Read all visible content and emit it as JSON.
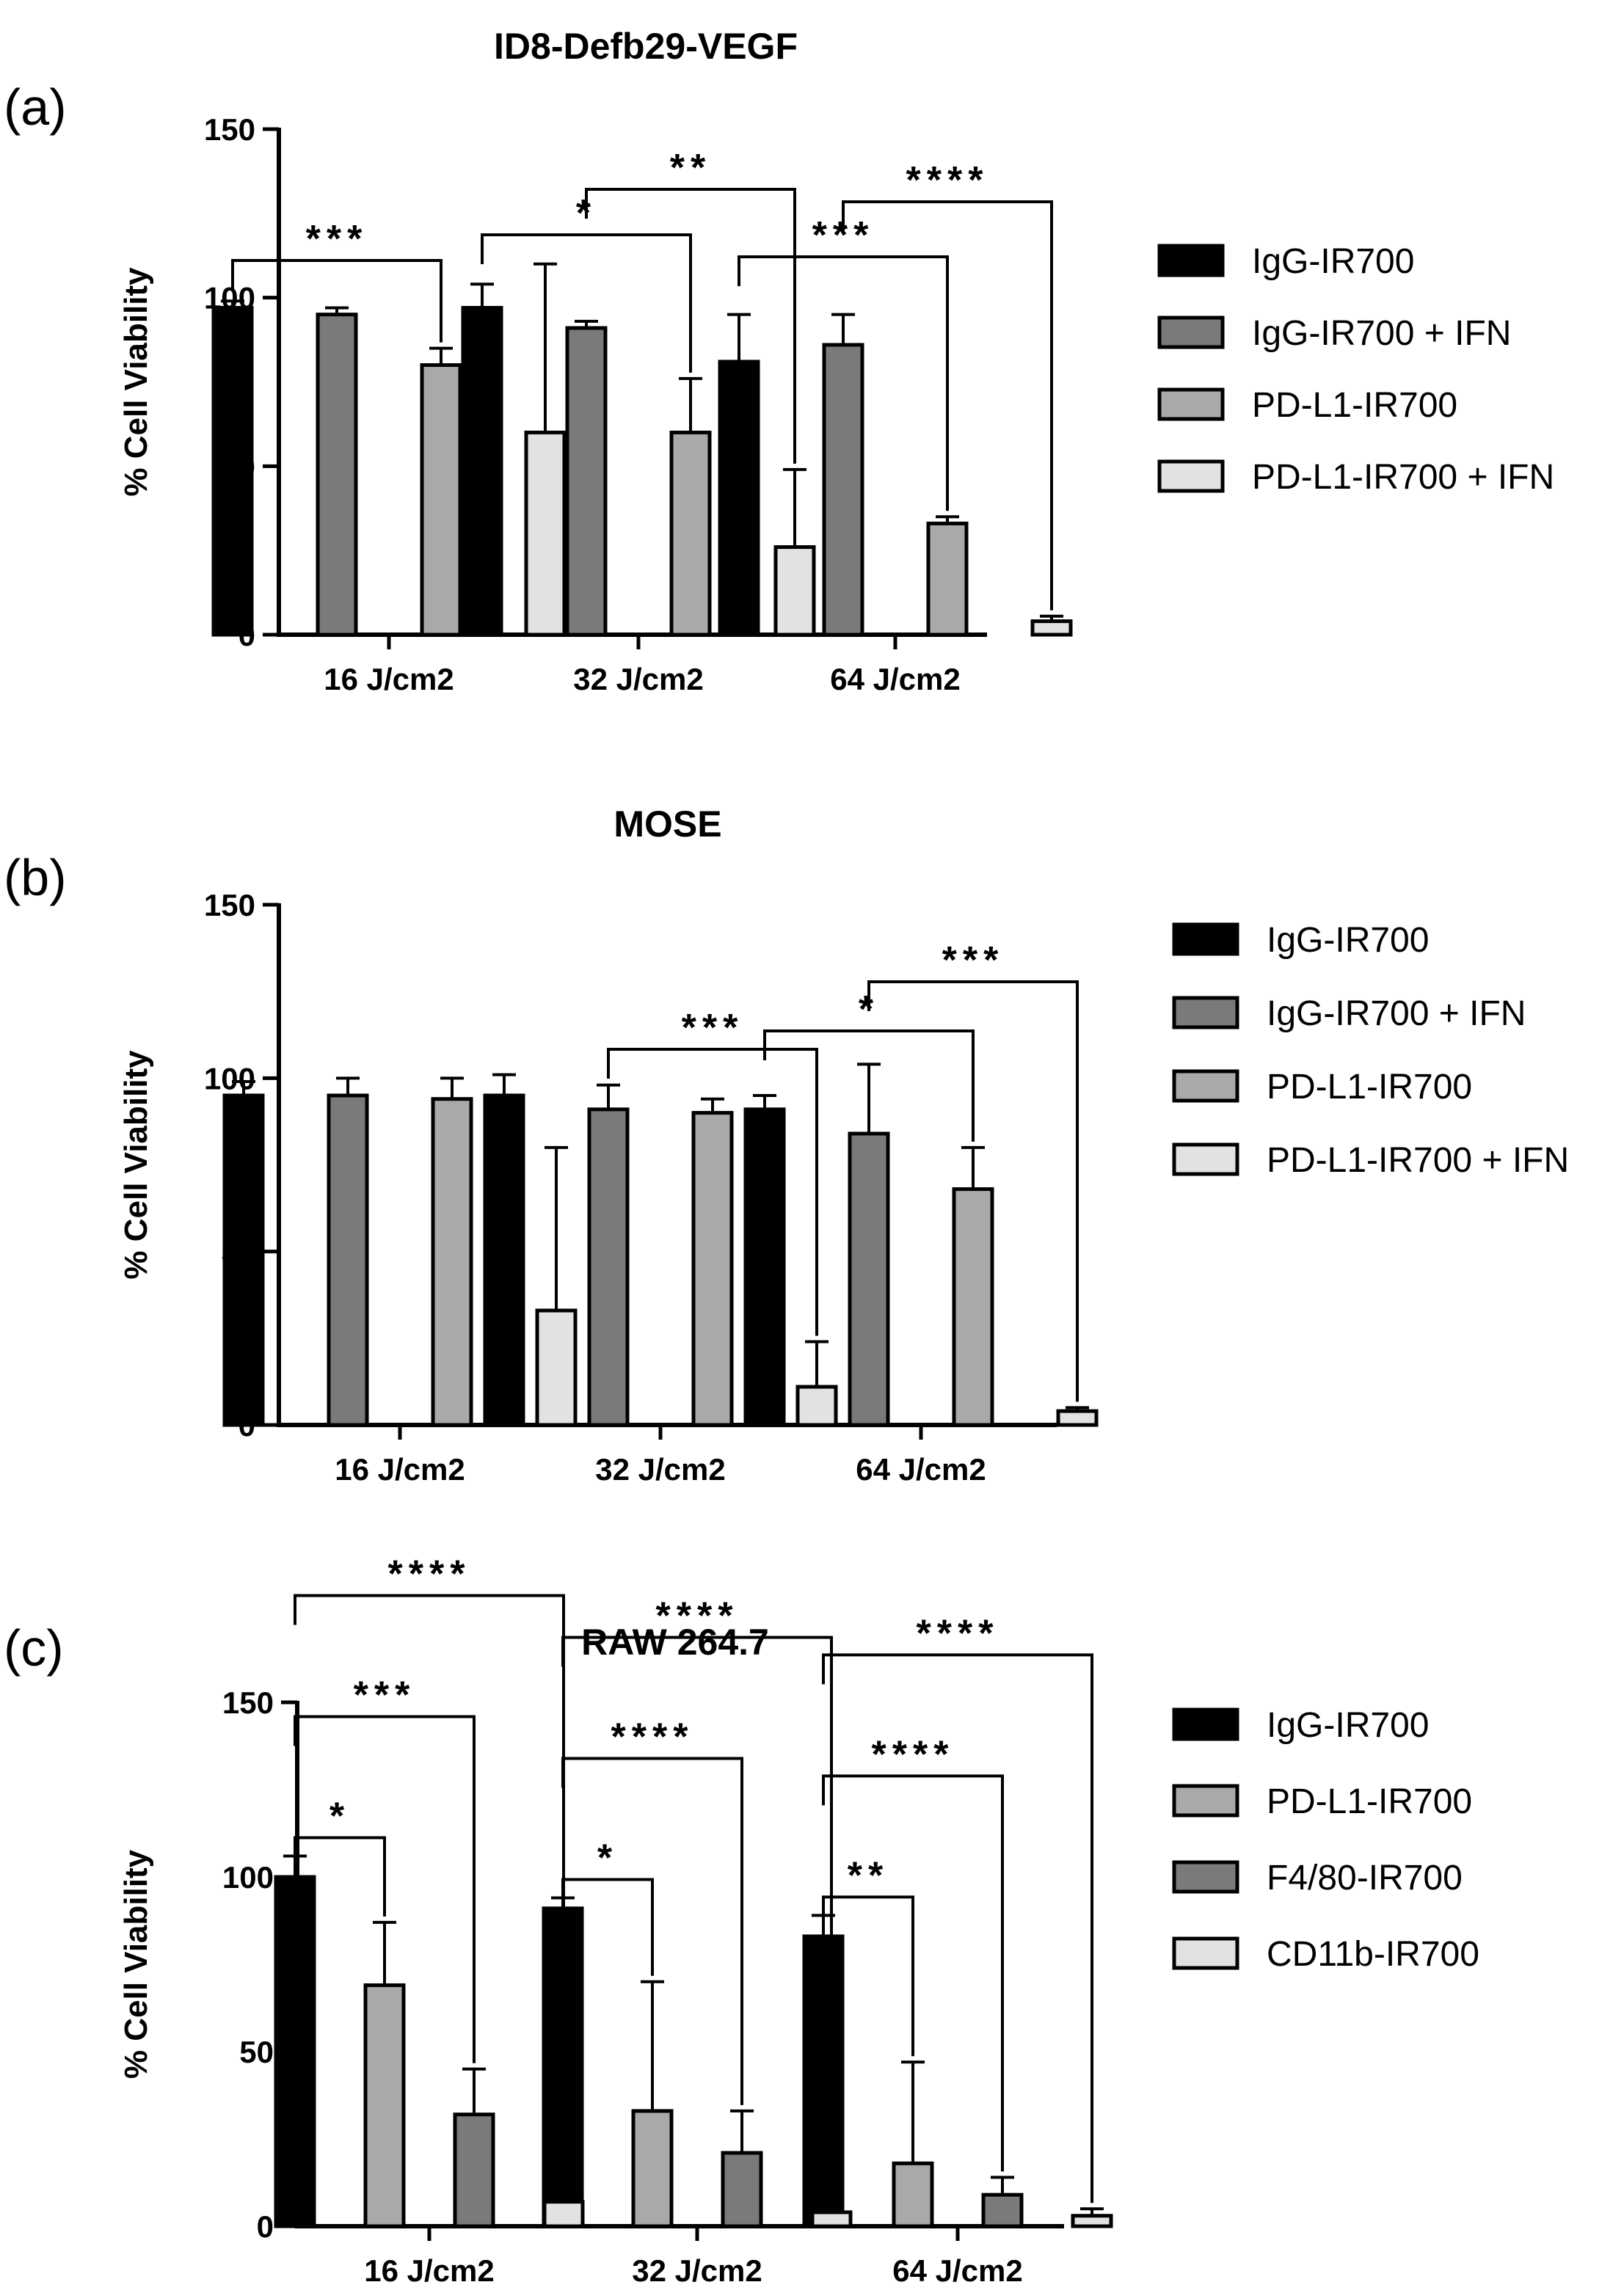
{
  "chart_data": [
    {
      "type": "bar",
      "panel_label": "(a)",
      "title": "ID8-Defb29-VEGF",
      "ylabel": "% Cell Viability",
      "xlabel": "",
      "ylim": [
        0,
        150
      ],
      "yticks": [
        0,
        50,
        100,
        150
      ],
      "categories": [
        "16 J/cm2",
        "32 J/cm2",
        "64 J/cm2"
      ],
      "legend_position": "right",
      "series": [
        {
          "name": "IgG-IR700",
          "color": "#000000",
          "values": [
            97,
            97,
            81
          ],
          "errors": [
            2,
            7,
            14
          ]
        },
        {
          "name": "IgG-IR700 + IFN",
          "color": "#7a7a7a",
          "values": [
            95,
            91,
            86
          ],
          "errors": [
            2,
            2,
            9
          ]
        },
        {
          "name": "PD-L1-IR700",
          "color": "#a9a9a9",
          "values": [
            80,
            60,
            33
          ],
          "errors": [
            5,
            16,
            2
          ]
        },
        {
          "name": "PD-L1-IR700 + IFN",
          "color": "#e2e2e2",
          "values": [
            60,
            26,
            4
          ],
          "errors": [
            50,
            23,
            1.5
          ]
        }
      ],
      "annotations": [
        {
          "label": "***",
          "category": 0,
          "from": 0,
          "to": 2
        },
        {
          "label": "*",
          "category": 1,
          "from": 0,
          "to": 2
        },
        {
          "label": "**",
          "category": 1,
          "from": 1,
          "to": 3
        },
        {
          "label": "***",
          "category": 2,
          "from": 0,
          "to": 2
        },
        {
          "label": "****",
          "category": 2,
          "from": 1,
          "to": 3
        }
      ]
    },
    {
      "type": "bar",
      "panel_label": "(b)",
      "title": "MOSE",
      "ylabel": "% Cell Viability",
      "xlabel": "",
      "ylim": [
        0,
        150
      ],
      "yticks": [
        0,
        50,
        100,
        150
      ],
      "categories": [
        "16 J/cm2",
        "32 J/cm2",
        "64 J/cm2"
      ],
      "legend_position": "right",
      "series": [
        {
          "name": "IgG-IR700",
          "color": "#000000",
          "values": [
            95,
            95,
            91
          ],
          "errors": [
            4,
            6,
            4
          ]
        },
        {
          "name": "IgG-IR700 + IFN",
          "color": "#7a7a7a",
          "values": [
            95,
            91,
            84
          ],
          "errors": [
            5,
            7,
            20
          ]
        },
        {
          "name": "PD-L1-IR700",
          "color": "#a9a9a9",
          "values": [
            94,
            90,
            68
          ],
          "errors": [
            6,
            4,
            12
          ]
        },
        {
          "name": "PD-L1-IR700 + IFN",
          "color": "#e2e2e2",
          "values": [
            33,
            11,
            4
          ],
          "errors": [
            47,
            13,
            1
          ]
        }
      ],
      "annotations": [
        {
          "label": "***",
          "category": 1,
          "from": 1,
          "to": 3
        },
        {
          "label": "*",
          "category": 2,
          "from": 0,
          "to": 2
        },
        {
          "label": "***",
          "category": 2,
          "from": 1,
          "to": 3
        }
      ]
    },
    {
      "type": "bar",
      "panel_label": "(c)",
      "title": "RAW 264.7",
      "ylabel": "% Cell Viability",
      "xlabel": "",
      "ylim": [
        0,
        150
      ],
      "yticks": [
        0,
        50,
        100,
        150
      ],
      "categories": [
        "16 J/cm2",
        "32 J/cm2",
        "64 J/cm2"
      ],
      "legend_position": "right",
      "series": [
        {
          "name": "IgG-IR700",
          "color": "#000000",
          "values": [
            100,
            91,
            83
          ],
          "errors": [
            6,
            3,
            6
          ]
        },
        {
          "name": "PD-L1-IR700",
          "color": "#a9a9a9",
          "values": [
            69,
            33,
            18
          ],
          "errors": [
            18,
            37,
            29
          ]
        },
        {
          "name": "F4/80-IR700",
          "color": "#7a7a7a",
          "values": [
            32,
            21,
            9
          ],
          "errors": [
            13,
            12,
            5
          ]
        },
        {
          "name": "CD11b-IR700",
          "color": "#e2e2e2",
          "values": [
            7,
            4,
            3
          ],
          "errors": [
            1.5,
            3.5,
            2
          ]
        }
      ],
      "annotations": [
        {
          "label": "*",
          "category": 0,
          "from": 0,
          "to": 1
        },
        {
          "label": "***",
          "category": 0,
          "from": 0,
          "to": 2
        },
        {
          "label": "****",
          "category": 0,
          "from": 0,
          "to": 3
        },
        {
          "label": "*",
          "category": 1,
          "from": 0,
          "to": 1
        },
        {
          "label": "****",
          "category": 1,
          "from": 0,
          "to": 2
        },
        {
          "label": "****",
          "category": 1,
          "from": 0,
          "to": 3
        },
        {
          "label": "**",
          "category": 2,
          "from": 0,
          "to": 1
        },
        {
          "label": "****",
          "category": 2,
          "from": 0,
          "to": 2
        },
        {
          "label": "****",
          "category": 2,
          "from": 0,
          "to": 3
        }
      ]
    }
  ]
}
